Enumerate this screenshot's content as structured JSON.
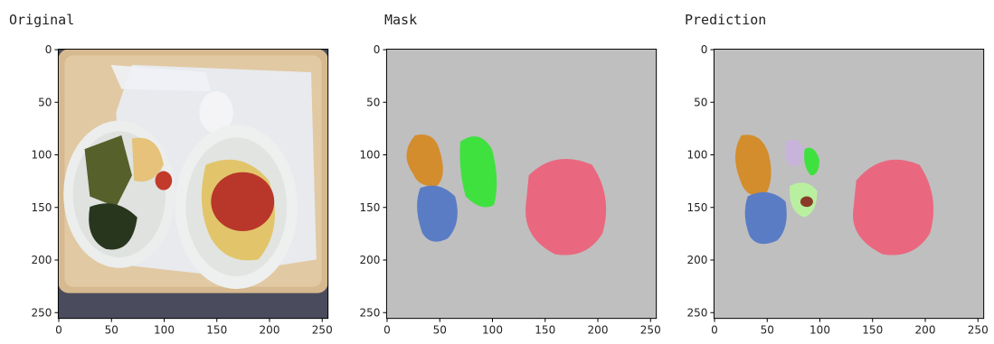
{
  "panels": [
    {
      "title": "Original",
      "xticks": [
        0,
        50,
        100,
        150,
        200,
        250
      ],
      "yticks": [
        0,
        50,
        100,
        150,
        200,
        250
      ]
    },
    {
      "title": "Mask",
      "xticks": [
        0,
        50,
        100,
        150,
        200,
        250
      ],
      "yticks": [
        0,
        50,
        100,
        150,
        200,
        250
      ]
    },
    {
      "title": "Prediction",
      "xticks": [
        0,
        50,
        100,
        150,
        200,
        250
      ],
      "yticks": [
        0,
        50,
        100,
        150,
        200,
        250
      ]
    }
  ]
}
